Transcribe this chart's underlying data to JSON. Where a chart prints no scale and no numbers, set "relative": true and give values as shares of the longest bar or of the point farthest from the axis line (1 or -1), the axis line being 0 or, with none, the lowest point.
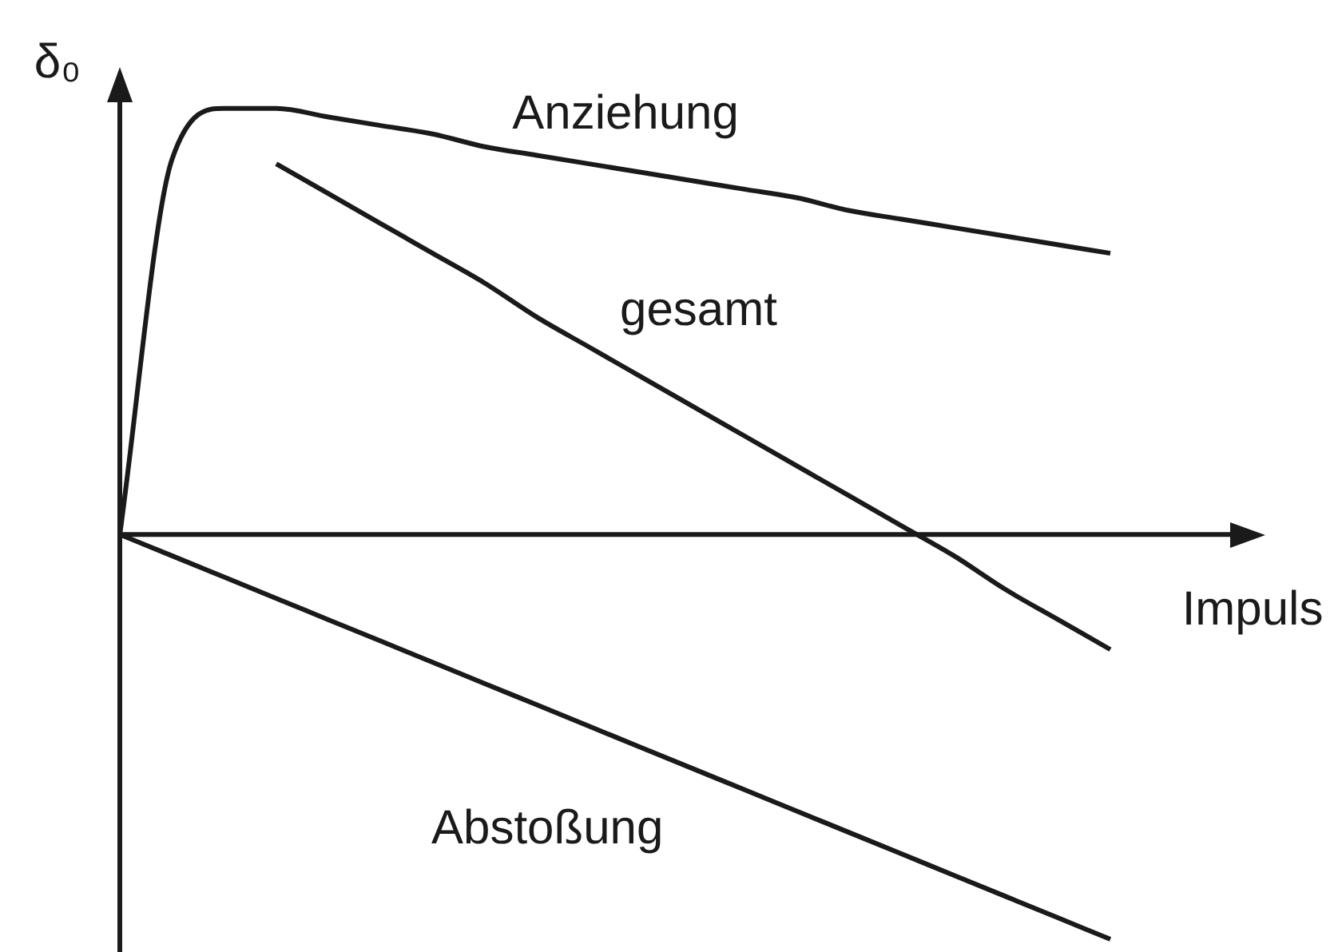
{
  "chart_data": {
    "type": "line",
    "relative": true,
    "xlabel": "Impuls",
    "ylabel": "δ₀",
    "categories": [
      null,
      null,
      null,
      null,
      null,
      null,
      null,
      null,
      null,
      null,
      null,
      null,
      null,
      null,
      null,
      null,
      null,
      null,
      null,
      null
    ],
    "series": [
      {
        "name": "Anziehung",
        "color": "#1a1a1a",
        "values": [
          0,
          0.88,
          1.0,
          1.0,
          0.98,
          0.96,
          0.94,
          0.91,
          0.89,
          0.87,
          0.85,
          0.83,
          0.81,
          0.79,
          0.76,
          0.74,
          0.72,
          0.7,
          0.68,
          0.66
        ]
      },
      {
        "name": "gesamt",
        "color": "#1a1a1a",
        "values": [
          null,
          null,
          null,
          0.87,
          0.8,
          0.73,
          0.66,
          0.59,
          0.51,
          0.44,
          0.37,
          0.3,
          0.23,
          0.16,
          0.09,
          0.02,
          -0.05,
          -0.13,
          -0.2,
          -0.27
        ]
      },
      {
        "name": "Abstoßung",
        "color": "#1a1a1a",
        "values": [
          0,
          -0.05,
          -0.1,
          -0.15,
          -0.2,
          -0.25,
          -0.3,
          -0.35,
          -0.4,
          -0.45,
          -0.5,
          -0.55,
          -0.6,
          -0.65,
          -0.7,
          -0.75,
          -0.8,
          -0.85,
          -0.9,
          -0.95
        ]
      }
    ],
    "legend": false,
    "marker": "none"
  }
}
